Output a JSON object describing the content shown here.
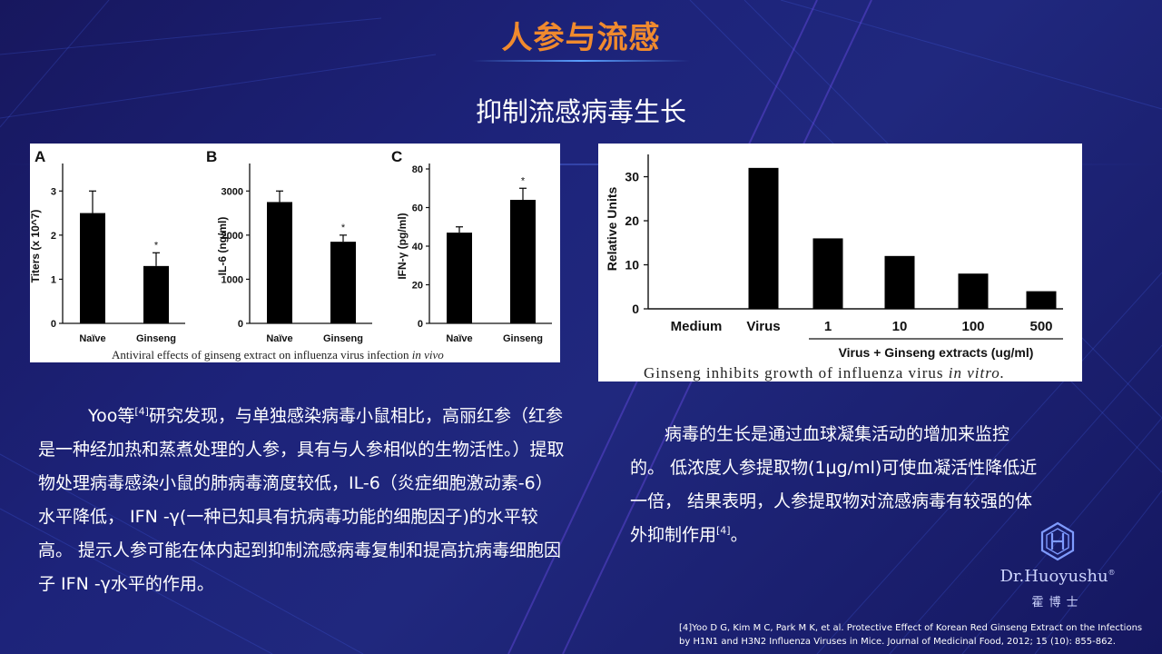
{
  "slide": {
    "title": "人参与流感",
    "subtitle": "抑制流感病毒生长"
  },
  "figure_left": {
    "caption": "Antiviral effects of ginseng extract on influenza virus infection in vivo",
    "caption_main": "Antiviral effects of ginseng extract on influenza virus infection",
    "caption_italic": "in vivo",
    "panels": [
      {
        "letter": "A",
        "ylabel": "Titers (x 10^7)",
        "ticks": [
          "0",
          "1",
          "2",
          "3"
        ],
        "categories": [
          "Naïve",
          "Ginseng"
        ],
        "values": [
          2.5,
          1.3
        ],
        "errors": [
          0.5,
          0.3
        ],
        "ylim": [
          0,
          3.5
        ],
        "significance": [
          "",
          "*"
        ]
      },
      {
        "letter": "B",
        "ylabel": "IL-6 (ng/ml)",
        "ticks": [
          "0",
          "1000",
          "2000",
          "3000"
        ],
        "categories": [
          "Naïve",
          "Ginseng"
        ],
        "values": [
          2750,
          1850
        ],
        "errors": [
          250,
          150
        ],
        "ylim": [
          0,
          3500
        ],
        "significance": [
          "",
          "*"
        ]
      },
      {
        "letter": "C",
        "ylabel": "IFN-γ (pg/ml)",
        "ticks": [
          "0",
          "20",
          "40",
          "60",
          "80"
        ],
        "categories": [
          "Naïve",
          "Ginseng"
        ],
        "values": [
          47,
          64
        ],
        "errors": [
          3,
          6
        ],
        "ylim": [
          0,
          80
        ],
        "significance": [
          "",
          "*"
        ]
      }
    ]
  },
  "figure_right": {
    "caption": "Ginseng inhibits growth of influenza virus in vitro.",
    "caption_main": "Ginseng inhibits growth of influenza virus",
    "caption_italic": "in vitro.",
    "ylabel": "Relative Units",
    "ticks": [
      "0",
      "10",
      "20",
      "30"
    ],
    "categories": [
      "Medium",
      "Virus",
      "1",
      "10",
      "100",
      "500"
    ],
    "values": [
      0,
      32,
      16,
      12,
      8,
      4
    ],
    "ylim": [
      0,
      33
    ],
    "group_label": "Virus + Ginseng extracts (ug/ml)"
  },
  "chart_data": [
    {
      "type": "bar",
      "title": "A",
      "categories": [
        "Naïve",
        "Ginseng"
      ],
      "values": [
        2.5,
        1.3
      ],
      "ylabel": "Titers (x 10^7)",
      "ylim": [
        0,
        3.5
      ]
    },
    {
      "type": "bar",
      "title": "B",
      "categories": [
        "Naïve",
        "Ginseng"
      ],
      "values": [
        2750,
        1850
      ],
      "ylabel": "IL-6 (ng/ml)",
      "ylim": [
        0,
        3500
      ]
    },
    {
      "type": "bar",
      "title": "C",
      "categories": [
        "Naïve",
        "Ginseng"
      ],
      "values": [
        47,
        64
      ],
      "ylabel": "IFN-γ (pg/ml)",
      "ylim": [
        0,
        80
      ]
    },
    {
      "type": "bar",
      "categories": [
        "Medium",
        "Virus",
        "1",
        "10",
        "100",
        "500"
      ],
      "values": [
        0,
        32,
        16,
        12,
        8,
        4
      ],
      "xlabel": "Virus + Ginseng extracts (ug/ml)",
      "ylabel": "Relative Units",
      "ylim": [
        0,
        33
      ]
    }
  ],
  "text_left": {
    "author": "Yoo等",
    "ref_mark": "[4]",
    "body": "研究发现，与单独感染病毒小鼠相比，高丽红参（红参是一种经加热和蒸煮处理的人参，具有与人参相似的生物活性。）提取物处理病毒感染小鼠的肺病毒滴度较低，IL-6（炎症细胞激动素-6）水平降低， IFN -γ(一种已知具有抗病毒功能的细胞因子)的水平较高。 提示人参可能在体内起到抑制流感病毒复制和提高抗病毒细胞因子 IFN -γ水平的作用。"
  },
  "text_right": {
    "body": "病毒的生长是通过血球凝集活动的增加来监控的。 低浓度人参提取物(1μg/ml)可使血凝活性降低近一倍， 结果表明，人参提取物对流感病毒有较强的体外抑制作用",
    "ref_mark": "[4]",
    "end": "。"
  },
  "logo": {
    "name_prefix": "Dr.",
    "name_brand": "Huoyushu",
    "reg": "®",
    "name_cn": "霍博士"
  },
  "reference": {
    "text": "[4]Yoo D G, Kim M C, Park M K, et al. Protective Effect of Korean Red Ginseng Extract on the Infections by H1N1 and H3N2 Influenza Viruses in Mice. Journal of Medicinal Food, 2012; 15 (10): 855-862."
  }
}
